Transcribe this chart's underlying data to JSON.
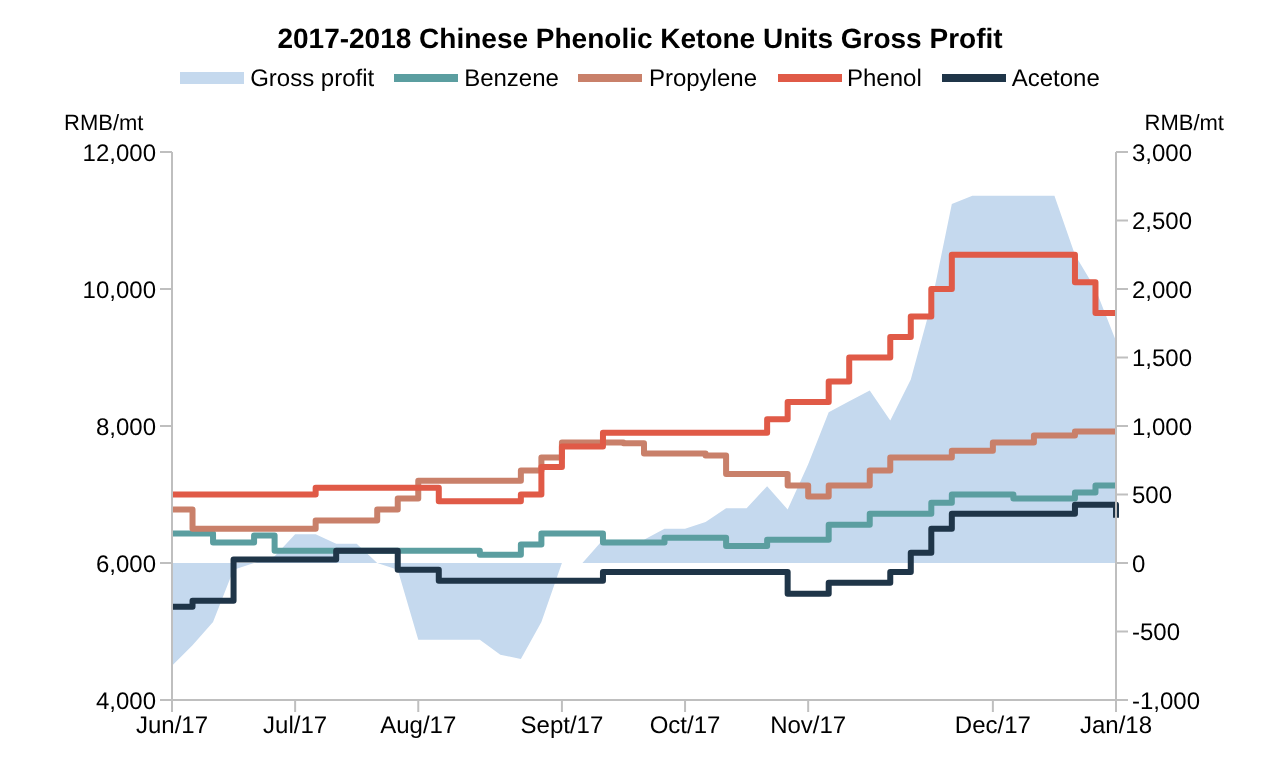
{
  "chart_data": {
    "type": "step",
    "title": "2017-2018 Chinese Phenolic Ketone Units Gross Profit",
    "ylabel": "RMB/mt",
    "y2label": "RMB/mt",
    "categories": [
      "Jun/17",
      null,
      null,
      null,
      null,
      null,
      "Jul/17",
      null,
      null,
      null,
      null,
      null,
      "Aug/17",
      null,
      null,
      null,
      null,
      null,
      null,
      "Sept/17",
      null,
      null,
      null,
      null,
      null,
      "Oct/17",
      null,
      null,
      null,
      null,
      null,
      "Nov/17",
      null,
      null,
      null,
      null,
      null,
      null,
      null,
      null,
      "Dec/17",
      null,
      null,
      null,
      null,
      null,
      "Jan/18"
    ],
    "series": [
      {
        "name": "Gross profit",
        "type": "area",
        "axis": "y2",
        "color": "#c5d9ee",
        "values": [
          -750,
          -600,
          -430,
          -50,
          0,
          50,
          210,
          210,
          140,
          140,
          0,
          -50,
          -560,
          -560,
          -560,
          -560,
          -670,
          -700,
          -430,
          0,
          0,
          170,
          170,
          170,
          250,
          250,
          300,
          400,
          400,
          560,
          390,
          720,
          1100,
          1180,
          1260,
          1040,
          1340,
          1890,
          2620,
          2680,
          2680,
          2680,
          2680,
          2680,
          2250,
          2000,
          1620
        ]
      },
      {
        "name": "Benzene",
        "color": "#5b9ea0",
        "values": [
          6430,
          6430,
          6300,
          6300,
          6400,
          6180,
          6180,
          6180,
          6180,
          6180,
          6180,
          6180,
          6180,
          6180,
          6180,
          6120,
          6120,
          6270,
          6430,
          6430,
          6430,
          6300,
          6300,
          6300,
          6370,
          6370,
          6370,
          6250,
          6250,
          6340,
          6340,
          6340,
          6560,
          6560,
          6720,
          6720,
          6720,
          6880,
          7000,
          7000,
          7000,
          6940,
          6940,
          6940,
          7030,
          7130,
          7130
        ]
      },
      {
        "name": "Propylene",
        "color": "#c9806a",
        "values": [
          6780,
          6500,
          6500,
          6500,
          6500,
          6500,
          6500,
          6620,
          6620,
          6620,
          6780,
          6940,
          7200,
          7200,
          7200,
          7200,
          7200,
          7350,
          7540,
          7760,
          7760,
          7760,
          7750,
          7600,
          7600,
          7600,
          7570,
          7300,
          7300,
          7300,
          7130,
          6970,
          7130,
          7130,
          7350,
          7540,
          7540,
          7540,
          7640,
          7640,
          7760,
          7760,
          7860,
          7860,
          7920,
          7920,
          7920
        ]
      },
      {
        "name": "Phenol",
        "color": "#e05a47",
        "values": [
          7000,
          7000,
          7000,
          7000,
          7000,
          7000,
          7000,
          7100,
          7100,
          7100,
          7100,
          7100,
          7100,
          6900,
          6900,
          6900,
          6900,
          7000,
          7400,
          7700,
          7700,
          7900,
          7900,
          7900,
          7900,
          7900,
          7900,
          7900,
          7900,
          8100,
          8350,
          8350,
          8650,
          9000,
          9000,
          9300,
          9600,
          10000,
          10500,
          10500,
          10500,
          10500,
          10500,
          10500,
          10100,
          9650,
          9650
        ]
      },
      {
        "name": "Acetone",
        "color": "#1f3548",
        "values": [
          5360,
          5450,
          5450,
          6050,
          6050,
          6050,
          6050,
          6050,
          6180,
          6180,
          6180,
          5900,
          5900,
          5740,
          5740,
          5740,
          5740,
          5740,
          5740,
          5740,
          5740,
          5870,
          5870,
          5870,
          5870,
          5870,
          5870,
          5870,
          5870,
          5870,
          5550,
          5550,
          5710,
          5710,
          5710,
          5870,
          6150,
          6500,
          6720,
          6720,
          6720,
          6720,
          6720,
          6720,
          6850,
          6850,
          6660
        ]
      }
    ],
    "ylim": [
      4000,
      12000
    ],
    "yticks": [
      {
        "value": 4000,
        "label": "4,000"
      },
      {
        "value": 6000,
        "label": "6,000"
      },
      {
        "value": 8000,
        "label": "8,000"
      },
      {
        "value": 10000,
        "label": "10,000"
      },
      {
        "value": 12000,
        "label": "12,000"
      }
    ],
    "y2lim": [
      -1000,
      3000
    ],
    "y2ticks": [
      {
        "value": -1000,
        "label": "-1,000"
      },
      {
        "value": -500,
        "label": "-500"
      },
      0,
      {
        "value": 500,
        "label": "500"
      },
      {
        "value": 1000,
        "label": "1,000"
      },
      {
        "value": 1500,
        "label": "1,500"
      },
      {
        "value": 2000,
        "label": "2,000"
      },
      {
        "value": 2500,
        "label": "2,500"
      },
      {
        "value": 3000,
        "label": "3,000"
      }
    ],
    "legend": "top",
    "grid": false,
    "marker": "none"
  }
}
